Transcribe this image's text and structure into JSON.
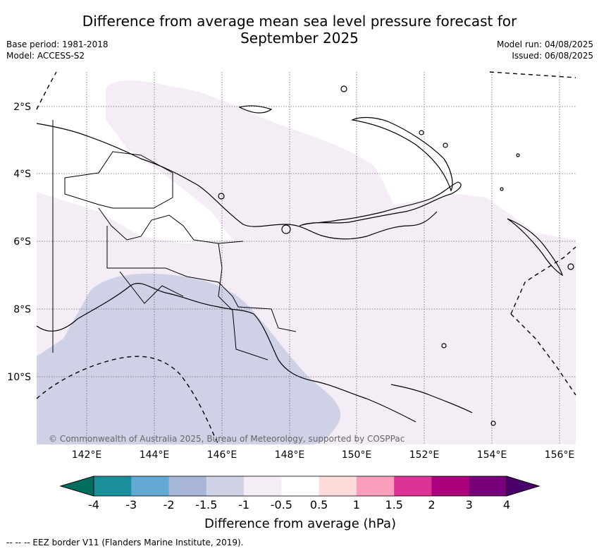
{
  "title_line1": "Difference from average mean sea level pressure forecast for",
  "title_line2": "September 2025",
  "meta_left": {
    "base_period": "Base period: 1981-2018",
    "model": "Model: ACCESS-S2"
  },
  "meta_right": {
    "model_run": "Model run: 04/08/2025",
    "issued": "Issued: 06/08/2025"
  },
  "map": {
    "lat_labels": [
      "2°S",
      "4°S",
      "6°S",
      "8°S",
      "10°S"
    ],
    "lon_labels": [
      "142°E",
      "144°E",
      "146°E",
      "148°E",
      "150°E",
      "152°E",
      "154°E",
      "156°E"
    ],
    "copyright": "© Commonwealth of Australia 2025, Bureau of Meteorology, supported by COSPPac",
    "land_outline_color": "#000000",
    "fill_colors": {
      "-1_to_-0.5": "#f4edf6",
      "-1.5_to_-1": "#cfd2e6"
    }
  },
  "colorbar": {
    "label": "Difference from average (hPa)",
    "ticks": [
      "-4",
      "-3",
      "-2",
      "-1.5",
      "-1",
      "-0.5",
      "0.5",
      "1",
      "1.5",
      "2",
      "3",
      "4"
    ],
    "colors": [
      "#1b8f99",
      "#64a8d4",
      "#a8b7d8",
      "#d0d2e6",
      "#f4edf6",
      "#ffffff",
      "#ffdcdc",
      "#f99fbb",
      "#dd3397",
      "#ac007c",
      "#77007b"
    ],
    "low_extend_color": "#006e5e",
    "high_extend_color": "#4a006a"
  },
  "footer": "--  --  -- EEZ border V11 (Flanders Marine Institute, 2019)."
}
